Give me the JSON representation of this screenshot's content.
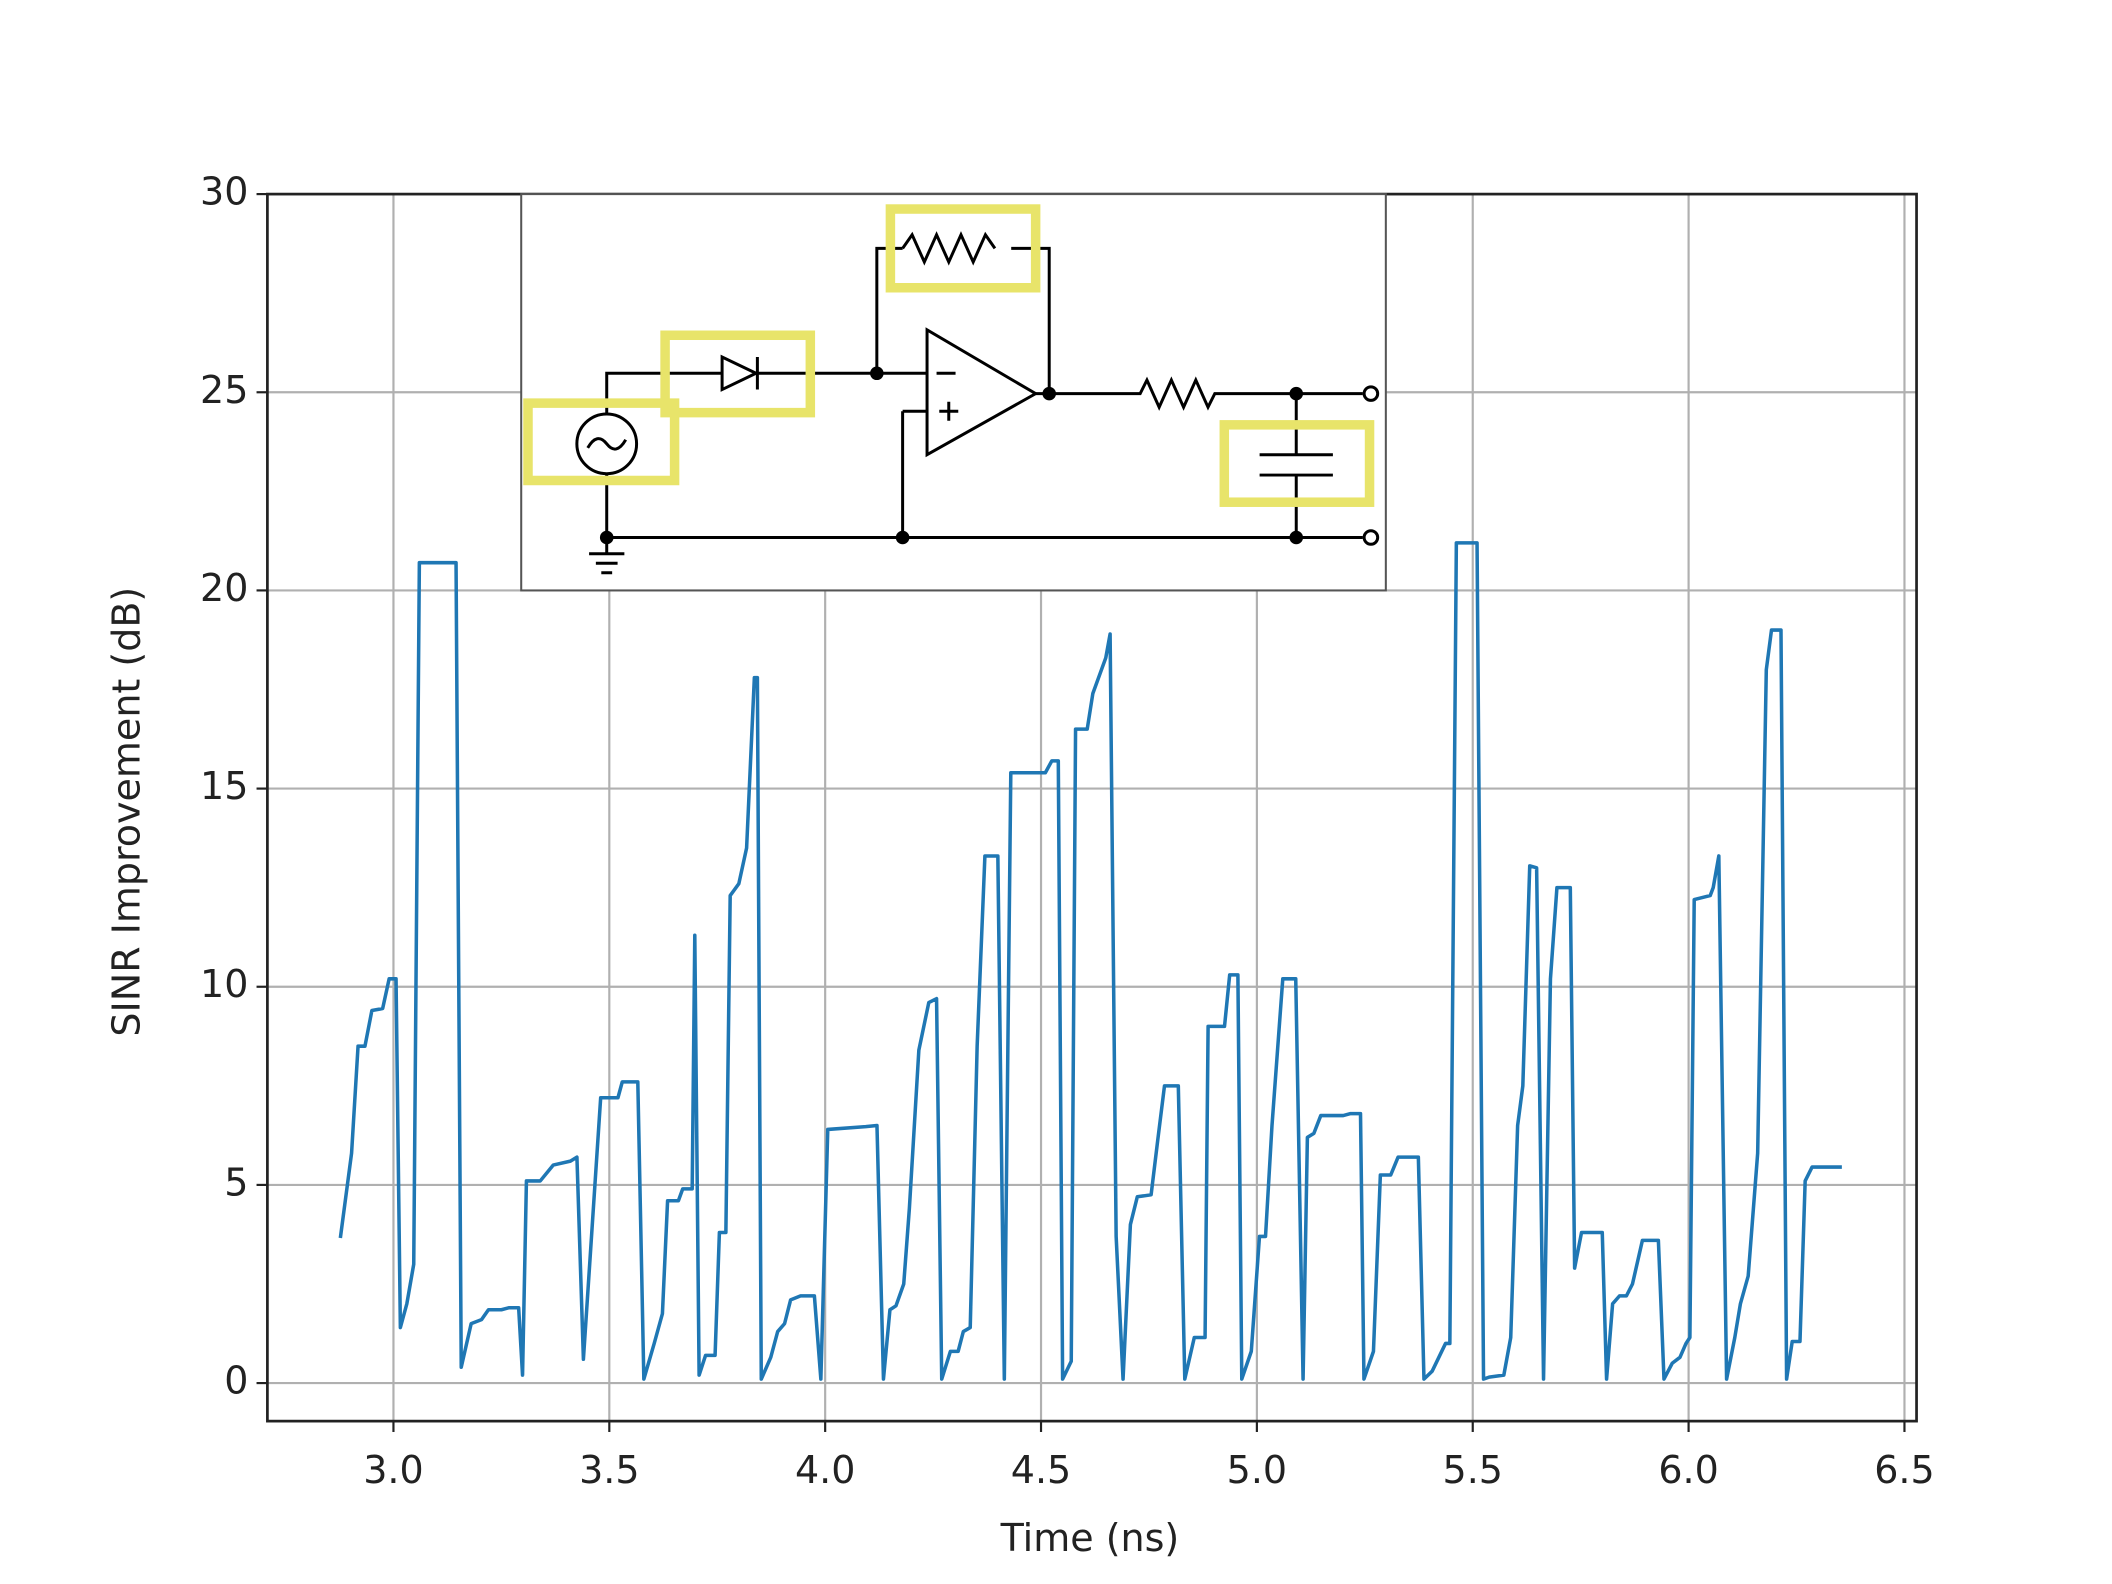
{
  "chart_data": {
    "type": "line",
    "xlabel": "Time (ns)",
    "ylabel": "SINR Improvement (dB)",
    "xlim": [
      2.708,
      6.528
    ],
    "ylim": [
      -0.96,
      30
    ],
    "xticks": [
      {
        "value": 3,
        "label": "3.0"
      },
      {
        "value": 3.5,
        "label": "3.5"
      },
      {
        "value": 4,
        "label": "4.0"
      },
      {
        "value": 4.5,
        "label": "4.5"
      },
      {
        "value": 5,
        "label": "5.0"
      },
      {
        "value": 5.5,
        "label": "5.5"
      },
      {
        "value": 6,
        "label": "6.0"
      },
      {
        "value": 6.5,
        "label": "6.5"
      }
    ],
    "yticks": [
      0,
      5,
      10,
      15,
      20,
      25,
      30
    ],
    "grid": true,
    "series": [
      {
        "color": "#1f77b4",
        "x": [
          2.877,
          2.903,
          2.918,
          2.934,
          2.95,
          2.975,
          2.99,
          3.006,
          3.016,
          3.031,
          3.047,
          3.06,
          3.145,
          3.157,
          3.18,
          3.204,
          3.22,
          3.25,
          3.267,
          3.29,
          3.299,
          3.308,
          3.34,
          3.37,
          3.41,
          3.425,
          3.44,
          3.46,
          3.48,
          3.52,
          3.53,
          3.566,
          3.58,
          3.604,
          3.623,
          3.635,
          3.66,
          3.67,
          3.692,
          3.698,
          3.708,
          3.723,
          3.745,
          3.755,
          3.77,
          3.78,
          3.8,
          3.818,
          3.836,
          3.843,
          3.852,
          3.874,
          3.89,
          3.906,
          3.92,
          3.943,
          3.975,
          3.99,
          4.006,
          4.094,
          4.12,
          4.135,
          4.15,
          4.164,
          4.182,
          4.195,
          4.217,
          4.24,
          4.258,
          4.27,
          4.29,
          4.308,
          4.32,
          4.336,
          4.352,
          4.37,
          4.4,
          4.415,
          4.43,
          4.51,
          4.525,
          4.54,
          4.55,
          4.57,
          4.58,
          4.607,
          4.62,
          4.65,
          4.66,
          4.674,
          4.69,
          4.707,
          4.723,
          4.755,
          4.77,
          4.786,
          4.818,
          4.833,
          4.855,
          4.88,
          4.887,
          4.925,
          4.937,
          4.956,
          4.965,
          4.987,
          5.006,
          5.02,
          5.035,
          5.06,
          5.09,
          5.107,
          5.117,
          5.132,
          5.148,
          5.2,
          5.217,
          5.24,
          5.248,
          5.27,
          5.286,
          5.31,
          5.327,
          5.374,
          5.387,
          5.406,
          5.437,
          5.447,
          5.462,
          5.51,
          5.525,
          5.538,
          5.572,
          5.588,
          5.604,
          5.616,
          5.632,
          5.648,
          5.664,
          5.68,
          5.695,
          5.726,
          5.736,
          5.752,
          5.8,
          5.81,
          5.824,
          5.84,
          5.856,
          5.87,
          5.893,
          5.93,
          5.943,
          5.962,
          5.98,
          5.994,
          6.003,
          6.013,
          6.05,
          6.057,
          6.07,
          6.088,
          6.107,
          6.12,
          6.138,
          6.16,
          6.18,
          6.192,
          6.214,
          6.227,
          6.24,
          6.258,
          6.27,
          6.286,
          6.318,
          6.355
        ],
        "values": [
          3.66,
          5.8,
          8.5,
          8.5,
          9.4,
          9.45,
          10.2,
          10.2,
          1.4,
          2.0,
          3.0,
          20.7,
          20.7,
          0.4,
          1.5,
          1.6,
          1.85,
          1.85,
          1.9,
          1.9,
          0.2,
          5.1,
          5.1,
          5.5,
          5.6,
          5.7,
          0.6,
          3.9,
          7.2,
          7.2,
          7.6,
          7.6,
          0.1,
          1.0,
          1.75,
          4.6,
          4.6,
          4.9,
          4.9,
          11.3,
          0.2,
          0.7,
          0.7,
          3.8,
          3.8,
          12.3,
          12.6,
          13.5,
          17.8,
          17.8,
          0.1,
          0.65,
          1.3,
          1.5,
          2.1,
          2.2,
          2.2,
          0.1,
          6.4,
          6.47,
          6.5,
          0.1,
          1.85,
          1.95,
          2.5,
          4.4,
          8.4,
          9.6,
          9.7,
          0.1,
          0.8,
          0.8,
          1.3,
          1.4,
          8.5,
          13.3,
          13.3,
          0.1,
          15.4,
          15.4,
          15.7,
          15.7,
          0.1,
          0.55,
          16.5,
          16.5,
          17.4,
          18.3,
          18.9,
          3.7,
          0.1,
          4.0,
          4.7,
          4.75,
          6.1,
          7.5,
          7.5,
          0.1,
          1.15,
          1.15,
          9.0,
          9.0,
          10.3,
          10.3,
          0.1,
          0.8,
          3.7,
          3.7,
          6.5,
          10.2,
          10.2,
          0.1,
          6.2,
          6.3,
          6.75,
          6.75,
          6.8,
          6.8,
          0.1,
          0.8,
          5.25,
          5.25,
          5.7,
          5.7,
          0.1,
          0.3,
          1.0,
          1.0,
          21.2,
          21.2,
          0.1,
          0.15,
          0.2,
          1.15,
          6.5,
          7.5,
          13.05,
          13.0,
          0.1,
          10.2,
          12.5,
          12.5,
          2.9,
          3.8,
          3.8,
          0.1,
          2.0,
          2.2,
          2.2,
          2.5,
          3.6,
          3.6,
          0.1,
          0.5,
          0.65,
          1.0,
          1.15,
          12.2,
          12.3,
          12.5,
          13.3,
          0.1,
          1.15,
          2.0,
          2.7,
          5.8,
          18.0,
          19.0,
          19.0,
          0.1,
          1.05,
          1.05,
          5.1,
          5.45,
          5.45,
          5.45
        ]
      }
    ]
  }
}
